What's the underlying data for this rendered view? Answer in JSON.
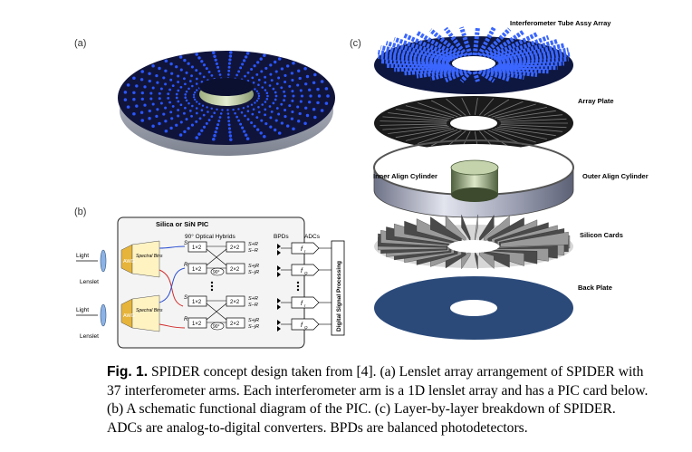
{
  "panels": {
    "a": {
      "label": "(a)"
    },
    "b": {
      "label": "(b)",
      "pic_title": "Silica or SiN PIC",
      "hybrids_label": "90° Optical Hybrids",
      "bpds_label": "BPDs",
      "adcs_label": "ADCs",
      "light_label": "Light",
      "lenslet_label": "Lenslet",
      "awg_label": "AWG",
      "spectral_bins_label": "Spectral Bins",
      "splitter_label": "1×2",
      "coupler_label": "2×2",
      "phase_label": "90°",
      "s_label": "S",
      "r_label": "R",
      "out_labels": [
        "S+R",
        "S−R",
        "S+jR",
        "S−jR"
      ],
      "adc_i": "f",
      "adc_q": "f",
      "adc_sub_i": "I",
      "adc_sub_q": "Q",
      "dsp_label": "Digital Signal Processing"
    },
    "c": {
      "label": "(c)",
      "layers": [
        "Interferometer Tube Assy Array",
        "Array Plate",
        "Inner Align Cylinder",
        "Outer Align Cylinder",
        "Silicon Cards",
        "Back Plate"
      ]
    }
  },
  "caption": {
    "fig_label": "Fig. 1.",
    "text": " SPIDER concept design taken from [4]. (a) Lenslet array arrangement of SPIDER with 37 interferometer arms. Each interferometer arm is a 1D lenslet array and has a PIC card below. (b) A schematic functional diagram of the PIC. (c) Layer-by-layer breakdown of SPIDER. ADCs are analog-to-digital converters. BPDs are balanced photodetectors."
  },
  "colors": {
    "lenslet_blue": "#1d3fbf",
    "plate_dark": "#1a1a1a",
    "back_plate": "#2b4a7a",
    "cylinder_gray": "#b9bcc8"
  }
}
